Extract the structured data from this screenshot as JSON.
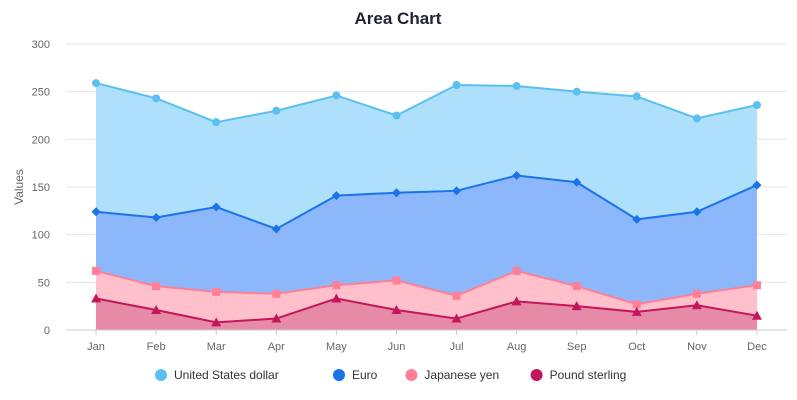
{
  "chart_data": {
    "type": "area",
    "title": "Area Chart",
    "xlabel": "",
    "ylabel": "Values",
    "ylim": [
      0,
      300
    ],
    "yticks": [
      0,
      50,
      100,
      150,
      200,
      250,
      300
    ],
    "grid": true,
    "legend_position": "bottom",
    "categories": [
      "Jan",
      "Feb",
      "Mar",
      "Apr",
      "May",
      "Jun",
      "Jul",
      "Aug",
      "Sep",
      "Oct",
      "Nov",
      "Dec"
    ],
    "series": [
      {
        "name": "United States dollar",
        "marker": "circle",
        "line_color": "#5bc0f0",
        "fill_color": "#aee0fb",
        "values": [
          259,
          243,
          218,
          230,
          246,
          225,
          257,
          256,
          250,
          245,
          222,
          236
        ]
      },
      {
        "name": "Euro",
        "marker": "diamond",
        "line_color": "#1a73e8",
        "fill_color": "#8cb8fb",
        "values": [
          124,
          118,
          129,
          106,
          141,
          144,
          146,
          162,
          155,
          116,
          124,
          152
        ]
      },
      {
        "name": "Japanese yen",
        "marker": "square",
        "line_color": "#ff7f96",
        "fill_color": "#ffc0cb",
        "values": [
          62,
          46,
          40,
          38,
          47,
          52,
          36,
          62,
          46,
          27,
          38,
          47
        ]
      },
      {
        "name": "Pound sterling",
        "marker": "triangle",
        "line_color": "#c2185b",
        "fill_color": "#e78aa8",
        "values": [
          33,
          21,
          8,
          12,
          33,
          21,
          12,
          30,
          25,
          19,
          26,
          15
        ]
      }
    ]
  }
}
